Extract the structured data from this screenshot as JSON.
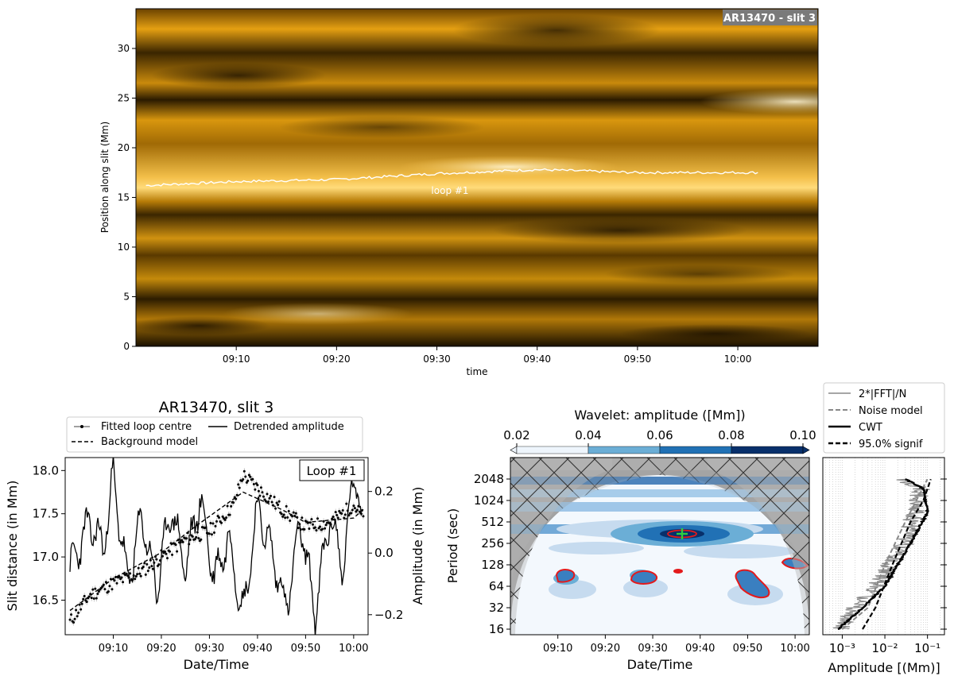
{
  "chart_data": [
    {
      "type": "heatmap",
      "panel": "time-distance map",
      "label_box": "AR13470 - slit 3",
      "xlabel": "time",
      "ylabel": "Position along slit (Mm)",
      "ylim": [
        0,
        34
      ],
      "xlim": [
        "09:00",
        "10:08"
      ],
      "x_ticks": [
        "09:10",
        "09:20",
        "09:30",
        "09:40",
        "09:50",
        "10:00"
      ],
      "y_ticks": [
        0,
        5,
        10,
        15,
        20,
        25,
        30
      ],
      "colormap": "sdoaia171 (black-orange-white)",
      "bright_bands_Mm": [
        1.8,
        6.2,
        11.2,
        17.4,
        24.5,
        29.0,
        33.0
      ],
      "dark_bands_Mm": [
        2.3,
        4.3,
        8.7,
        13.6,
        20.0,
        27.1,
        31.8
      ],
      "annotation": "loop #1",
      "loop_track": {
        "x": [
          "09:01",
          "09:10",
          "09:20",
          "09:30",
          "09:40",
          "09:50",
          "10:02"
        ],
        "y": [
          16.2,
          16.6,
          16.8,
          17.4,
          17.8,
          17.5,
          17.5
        ]
      }
    },
    {
      "type": "line",
      "panel": "loop centre time series",
      "title": "AR13470, slit 3",
      "label_box": "Loop #1",
      "xlabel": "Date/Time",
      "ylabel": "Slit distance (in Mm)",
      "ylabel_right": "Amplitude (in Mm)",
      "ylim": [
        16.1,
        18.15
      ],
      "ylim_right": [
        -0.265,
        0.31
      ],
      "x_ticks": [
        "09:10",
        "09:20",
        "09:30",
        "09:40",
        "09:50",
        "10:00"
      ],
      "y_ticks": [
        "16.5",
        "17.0",
        "17.5",
        "18.0"
      ],
      "y_ticks_right": [
        "−0.2",
        "0.0",
        "0.2"
      ],
      "legend": {
        "placement": "top",
        "items": [
          "Fitted loop centre",
          "Detrended amplitude",
          "Background model"
        ]
      },
      "series": [
        {
          "name": "Background model",
          "style": "dashed",
          "x": [
            "09:01",
            "09:10",
            "09:20",
            "09:27",
            "09:37",
            "09:45",
            "09:50",
            "10:00",
            "10:02"
          ],
          "y": [
            16.38,
            16.75,
            17.05,
            17.35,
            17.75,
            17.55,
            17.4,
            17.45,
            17.55
          ]
        },
        {
          "name": "Fitted loop centre",
          "style": "points with error bars",
          "x": [
            "09:01",
            "09:05",
            "09:10",
            "09:15",
            "09:20",
            "09:25",
            "09:30",
            "09:35",
            "09:37",
            "09:40",
            "09:45",
            "09:50",
            "09:55",
            "10:00",
            "10:02"
          ],
          "y": [
            16.25,
            16.55,
            16.7,
            16.8,
            17.0,
            17.2,
            17.3,
            17.6,
            17.95,
            17.8,
            17.55,
            17.35,
            17.4,
            17.6,
            17.45
          ]
        },
        {
          "name": "Detrended amplitude",
          "style": "solid",
          "axis": "right",
          "x": [
            "09:01",
            "09:05",
            "09:08",
            "09:10",
            "09:13",
            "09:16",
            "09:19",
            "09:22",
            "09:25",
            "09:28",
            "09:31",
            "09:34",
            "09:37",
            "09:40",
            "09:43",
            "09:46",
            "09:49",
            "09:52",
            "09:55",
            "09:58",
            "10:00",
            "10:02"
          ],
          "y": [
            -0.05,
            0.1,
            0.02,
            0.25,
            -0.1,
            0.12,
            -0.12,
            0.15,
            -0.05,
            0.18,
            -0.08,
            0.05,
            -0.2,
            0.15,
            0.0,
            -0.18,
            0.1,
            -0.2,
            0.12,
            -0.05,
            0.28,
            0.05
          ]
        }
      ]
    },
    {
      "type": "heatmap",
      "panel": "wavelet spectrum",
      "xlabel": "Date/Time",
      "ylabel": "Period (sec)",
      "x_ticks": [
        "09:10",
        "09:20",
        "09:30",
        "09:40",
        "09:50",
        "10:00"
      ],
      "y_ticks": [
        "16",
        "32",
        "64",
        "128",
        "256",
        "512",
        "1024",
        "2048"
      ],
      "yscale": "log2",
      "colorbar": {
        "label": "Wavelet: amplitude ([Mm])",
        "placement": "top",
        "ticks": [
          "0.02",
          "0.04",
          "0.06",
          "0.08",
          "0.10"
        ],
        "levels": [
          0.02,
          0.04,
          0.06,
          0.08,
          0.1
        ],
        "colors": [
          "#eef5fc",
          "#c6dbef",
          "#6baed6",
          "#2171b5",
          "#08306b"
        ]
      },
      "cone_of_influence": "hatched",
      "significance_contour_color": "#e31a1c",
      "peak_marker": {
        "time": "09:36",
        "period_sec": 700,
        "marker": "+",
        "color": "#2ecc40"
      },
      "high_power_regions": [
        {
          "time_start": "09:27",
          "time_end": "09:45",
          "period_sec": 700,
          "max_amplitude": 0.1
        },
        {
          "time_start": "09:00",
          "time_end": "10:02",
          "period_sec": 1900,
          "max_amplitude": 0.08
        },
        {
          "time_start": "09:00",
          "time_end": "10:02",
          "period_sec": 420,
          "max_amplitude": 0.06
        }
      ]
    },
    {
      "type": "line",
      "panel": "global spectrum",
      "xlabel": "Amplitude [(Mm)]",
      "xscale": "log",
      "x_ticks": [
        "10⁻³",
        "10⁻²",
        "10⁻¹"
      ],
      "legend": {
        "placement": "top",
        "items": [
          "2*|FFT|/N",
          "Noise model",
          "CWT",
          "95.0% signif"
        ]
      },
      "series": [
        {
          "name": "2*|FFT|/N",
          "color": "#888888",
          "style": "solid"
        },
        {
          "name": "Noise model",
          "color": "#888888",
          "style": "dashed",
          "x": [
            0.001,
            0.004,
            0.01,
            0.03,
            0.1
          ],
          "y_period_sec": [
            16,
            32,
            128,
            512,
            2048
          ]
        },
        {
          "name": "CWT",
          "color": "#000000",
          "style": "solid",
          "x": [
            0.0008,
            0.003,
            0.01,
            0.04,
            0.1,
            0.08,
            0.03
          ],
          "y_period_sec": [
            16,
            32,
            64,
            256,
            700,
            1500,
            2048
          ]
        },
        {
          "name": "95.0% signif",
          "color": "#000000",
          "style": "dashed",
          "x": [
            0.003,
            0.006,
            0.015,
            0.04,
            0.08,
            0.12
          ],
          "y_period_sec": [
            16,
            32,
            128,
            512,
            1024,
            2048
          ]
        }
      ]
    }
  ]
}
